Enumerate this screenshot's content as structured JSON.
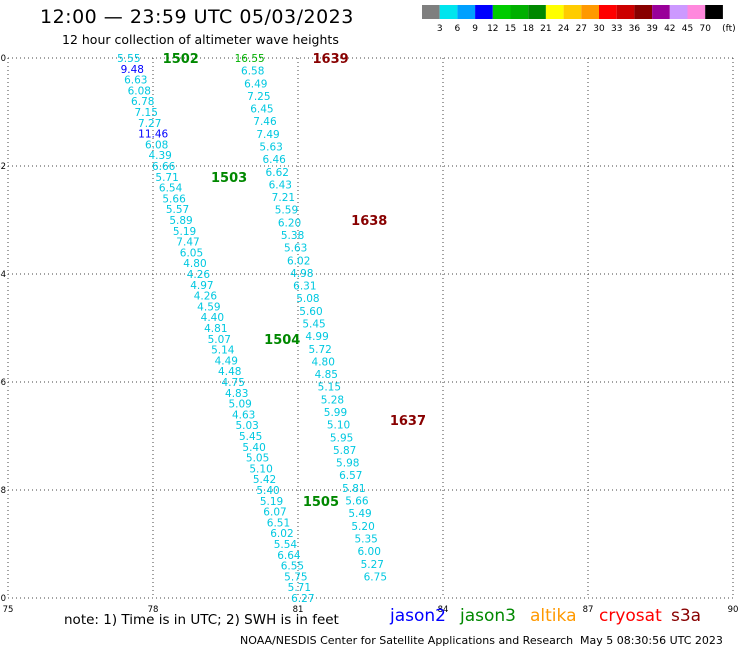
{
  "header": {
    "title": "12:00 — 23:59 UTC 05/03/2023",
    "subtitle": "12 hour collection of altimeter wave heights"
  },
  "colorbar": {
    "units": "(ft)",
    "levels": [
      {
        "label": "3",
        "color": "#7f7f7f"
      },
      {
        "label": "6",
        "color": "#00e5ee"
      },
      {
        "label": "9",
        "color": "#00a0ff"
      },
      {
        "label": "12",
        "color": "#0000ff"
      },
      {
        "label": "15",
        "color": "#00cc00"
      },
      {
        "label": "18",
        "color": "#00b000"
      },
      {
        "label": "21",
        "color": "#008800"
      },
      {
        "label": "24",
        "color": "#ffff00"
      },
      {
        "label": "27",
        "color": "#ffcc00"
      },
      {
        "label": "30",
        "color": "#ff9900"
      },
      {
        "label": "33",
        "color": "#ff0000"
      },
      {
        "label": "36",
        "color": "#cc0000"
      },
      {
        "label": "39",
        "color": "#880000"
      },
      {
        "label": "42",
        "color": "#990099"
      },
      {
        "label": "45",
        "color": "#cc99ff"
      },
      {
        "label": "70",
        "color": "#ff88dd"
      },
      {
        "label": "",
        "color": "#000000"
      }
    ]
  },
  "footer": {
    "note": "note:  1) Time is in UTC;  2) SWH is in feet",
    "missions": [
      {
        "label": "jason2",
        "color": "#0000ff"
      },
      {
        "label": "jason3",
        "color": "#008800"
      },
      {
        "label": "altika",
        "color": "#ff9900"
      },
      {
        "label": "cryosat",
        "color": "#ff0000"
      },
      {
        "label": "s3a",
        "color": "#880000"
      }
    ],
    "credit": "NOAA/NESDIS Center for Satellite Applications and Research",
    "timestamp": "May  5 08:30:56 UTC 2023"
  },
  "chart_data": {
    "type": "scatter",
    "xlim": [
      75,
      90
    ],
    "ylim": [
      -10,
      0
    ],
    "xticks": [
      75,
      78,
      81,
      84,
      87,
      90
    ],
    "yticks": [
      0,
      -2,
      -4,
      -6,
      -8,
      -10
    ],
    "grid": true,
    "tracks": [
      {
        "id": "1502",
        "color": "#008800",
        "lon": 78.2,
        "lat": 0.0
      },
      {
        "id": "1503",
        "color": "#008800",
        "lon": 79.2,
        "lat": -2.2
      },
      {
        "id": "1504",
        "color": "#008800",
        "lon": 80.3,
        "lat": -5.2
      },
      {
        "id": "1505",
        "color": "#008800",
        "lon": 81.1,
        "lat": -8.2
      },
      {
        "id": "1639",
        "color": "#880000",
        "lon": 81.3,
        "lat": 0.0
      },
      {
        "id": "1638",
        "color": "#880000",
        "lon": 82.1,
        "lat": -3.0
      },
      {
        "id": "1637",
        "color": "#880000",
        "lon": 82.9,
        "lat": -6.7
      }
    ],
    "series": [
      {
        "start": [
          77.5,
          0.0
        ],
        "end": [
          81.1,
          -10.0
        ],
        "values": [
          "5.55",
          "9.48",
          "6.63",
          "6.08",
          "6.78",
          "7.15",
          "7.27",
          "11.46",
          "6.08",
          "4.39",
          "6.66",
          "5.71",
          "6.54",
          "5.66",
          "5.57",
          "5.89",
          "5.19",
          "7.47",
          "6.05",
          "4.80",
          "4.26",
          "4.97",
          "4.26",
          "4.59",
          "4.40",
          "4.81",
          "5.07",
          "5.14",
          "4.49",
          "4.48",
          "4.75",
          "4.83",
          "5.09",
          "4.63",
          "5.03",
          "5.45",
          "5.40",
          "5.05",
          "5.10",
          "5.42",
          "5.40",
          "5.19",
          "6.07",
          "6.51",
          "6.02",
          "5.54",
          "6.64",
          "6.55",
          "5.75",
          "5.71",
          "6.27"
        ]
      },
      {
        "start": [
          80.0,
          0.0
        ],
        "end": [
          82.6,
          -9.6
        ],
        "values": [
          "16.55",
          "6.58",
          "6.49",
          "7.25",
          "6.45",
          "7.46",
          "7.49",
          "5.63",
          "6.46",
          "6.62",
          "6.43",
          "7.21",
          "5.59",
          "6.20",
          "5.38",
          "5.63",
          "6.02",
          "4.98",
          "6.31",
          "5.08",
          "5.60",
          "5.45",
          "4.99",
          "5.72",
          "4.80",
          "4.85",
          "5.15",
          "5.28",
          "5.99",
          "5.10",
          "5.95",
          "5.87",
          "5.98",
          "6.57",
          "5.81",
          "5.66",
          "5.49",
          "5.20",
          "5.35",
          "6.00",
          "5.27",
          "6.75"
        ]
      }
    ]
  }
}
